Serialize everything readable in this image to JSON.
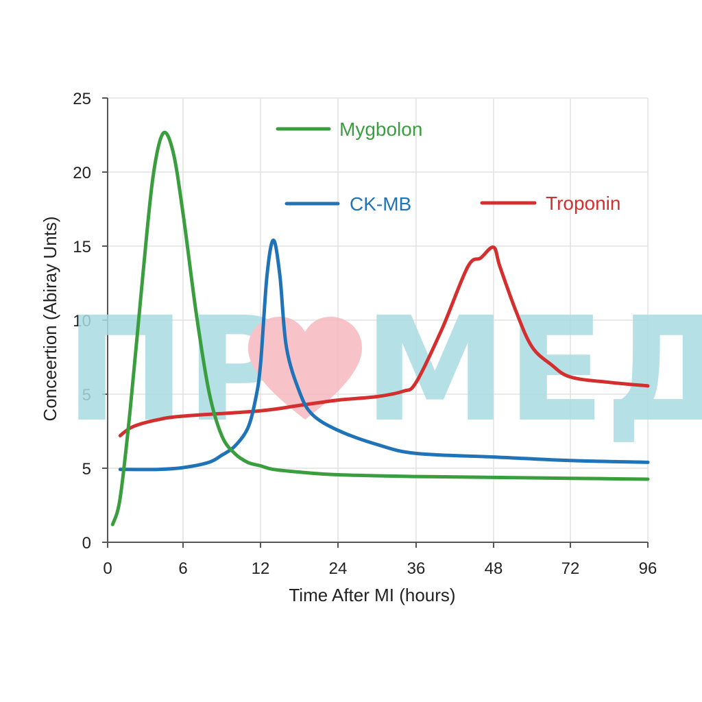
{
  "chart_data": {
    "type": "line",
    "xlabel": "Time After MI (hours)",
    "ylabel": "Conceertion (Abiray Unts)",
    "x_ticks": [
      "0",
      "6",
      "12",
      "24",
      "36",
      "48",
      "72",
      "96"
    ],
    "y_ticks": [
      "0",
      "5",
      "5",
      "10",
      "15",
      "20",
      "25"
    ],
    "ylim": [
      0,
      25
    ],
    "grid": true,
    "legend_placement": "inline labels near curve peaks",
    "series": [
      {
        "name": "Mygbolon",
        "color": "#3a9e3f",
        "points": [
          [
            0.4,
            1.0
          ],
          [
            1.0,
            2.5
          ],
          [
            1.8,
            7.5
          ],
          [
            2.8,
            15.0
          ],
          [
            3.6,
            20.5
          ],
          [
            4.4,
            23.0
          ],
          [
            5.2,
            22.0
          ],
          [
            6.0,
            18.5
          ],
          [
            7.0,
            13.0
          ],
          [
            8.0,
            8.5
          ],
          [
            9.0,
            6.0
          ],
          [
            10.0,
            5.0
          ],
          [
            11.0,
            4.5
          ],
          [
            12,
            4.3
          ],
          [
            14,
            4.1
          ],
          [
            18,
            3.95
          ],
          [
            24,
            3.8
          ],
          [
            36,
            3.7
          ],
          [
            48,
            3.65
          ],
          [
            72,
            3.6
          ],
          [
            96,
            3.55
          ]
        ]
      },
      {
        "name": "CK-MB",
        "color": "#1f73b6",
        "points": [
          [
            1.0,
            4.1
          ],
          [
            4.0,
            4.1
          ],
          [
            6.0,
            4.2
          ],
          [
            8.0,
            4.5
          ],
          [
            9.0,
            4.9
          ],
          [
            10.0,
            5.4
          ],
          [
            11.0,
            6.4
          ],
          [
            11.6,
            8.0
          ],
          [
            12,
            10.0
          ],
          [
            13,
            15.0
          ],
          [
            14,
            17.0
          ],
          [
            15,
            15.0
          ],
          [
            16,
            11.0
          ],
          [
            18,
            8.5
          ],
          [
            20,
            7.2
          ],
          [
            24,
            6.3
          ],
          [
            30,
            5.5
          ],
          [
            36,
            5.0
          ],
          [
            48,
            4.8
          ],
          [
            72,
            4.6
          ],
          [
            96,
            4.5
          ]
        ]
      },
      {
        "name": "Troponin",
        "color": "#d32f2f",
        "points": [
          [
            1.0,
            6.0
          ],
          [
            2.0,
            6.5
          ],
          [
            4.0,
            6.9
          ],
          [
            6.0,
            7.1
          ],
          [
            12,
            7.4
          ],
          [
            18,
            7.7
          ],
          [
            24,
            8.0
          ],
          [
            30,
            8.2
          ],
          [
            34,
            8.5
          ],
          [
            36,
            9.0
          ],
          [
            40,
            12.0
          ],
          [
            44,
            15.5
          ],
          [
            46,
            16.0
          ],
          [
            48,
            16.6
          ],
          [
            50,
            15.5
          ],
          [
            55,
            13.0
          ],
          [
            60,
            11.0
          ],
          [
            66,
            10.0
          ],
          [
            72,
            9.3
          ],
          [
            84,
            9.0
          ],
          [
            96,
            8.8
          ]
        ]
      }
    ]
  },
  "watermark": {
    "left_text": "ПР",
    "right_text": "МЕД",
    "icon": "heart-icon",
    "text_color": "#a9dbe2",
    "heart_color": "#f7b9bf"
  }
}
